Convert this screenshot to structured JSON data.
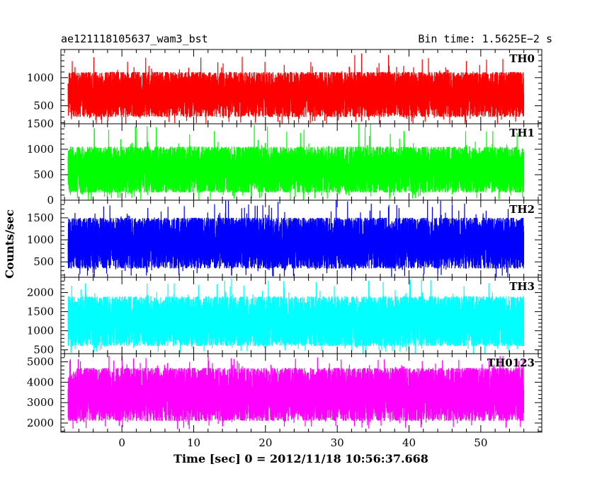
{
  "header": {
    "left": "ae121118105637_wam3_bst",
    "right": "Bin time: 1.5625E−2 s"
  },
  "chart_data": {
    "type": "line",
    "xlabel": "Time [sec] 0 = 2012/11/18 10:56:37.668",
    "ylabel": "Counts/sec",
    "xlim": [
      -8.5,
      58.5
    ],
    "x_data_range": [
      -7.5,
      56.0
    ],
    "x_ticks": [
      0,
      10,
      20,
      30,
      40,
      50
    ],
    "x_tick_labels": [
      "0",
      "10",
      "20",
      "30",
      "40",
      "50"
    ],
    "x_minor_step": 2,
    "series": [
      {
        "name": "TH0",
        "color": "#ff0000",
        "ylim": [
          180,
          1500
        ],
        "y_ticks": [
          500,
          1000
        ],
        "y_tick_labels": [
          "500",
          "1000"
        ],
        "y_minor_step": 100,
        "typical_low": 300,
        "typical_high": 1100,
        "peak_low": 150,
        "peak_high": 1450
      },
      {
        "name": "TH1",
        "color": "#00ff00",
        "ylim": [
          0,
          1500
        ],
        "y_ticks": [
          0,
          500,
          1000,
          1500
        ],
        "y_tick_labels": [
          "0",
          "500",
          "1000",
          "1500"
        ],
        "y_minor_step": 100,
        "typical_low": 150,
        "typical_high": 1050,
        "peak_low": 0,
        "peak_high": 1500
      },
      {
        "name": "TH2",
        "color": "#0000ff",
        "ylim": [
          150,
          1900
        ],
        "y_ticks": [
          500,
          1000,
          1500
        ],
        "y_tick_labels": [
          "500",
          "1000",
          "1500"
        ],
        "y_minor_step": 100,
        "typical_low": 350,
        "typical_high": 1500,
        "peak_low": 150,
        "peak_high": 1900
      },
      {
        "name": "TH3",
        "color": "#00ffff",
        "ylim": [
          400,
          2400
        ],
        "y_ticks": [
          500,
          1000,
          1500,
          2000
        ],
        "y_tick_labels": [
          "500",
          "1000",
          "1500",
          "2000"
        ],
        "y_minor_step": 100,
        "typical_low": 600,
        "typical_high": 1900,
        "peak_low": 400,
        "peak_high": 2400
      },
      {
        "name": "TH0123",
        "color": "#ff00ff",
        "ylim": [
          1550,
          5400
        ],
        "y_ticks": [
          2000,
          3000,
          4000,
          5000
        ],
        "y_tick_labels": [
          "2000",
          "3000",
          "4000",
          "5000"
        ],
        "y_minor_step": 200,
        "typical_low": 2100,
        "typical_high": 4700,
        "peak_low": 1700,
        "peak_high": 5300
      }
    ]
  }
}
